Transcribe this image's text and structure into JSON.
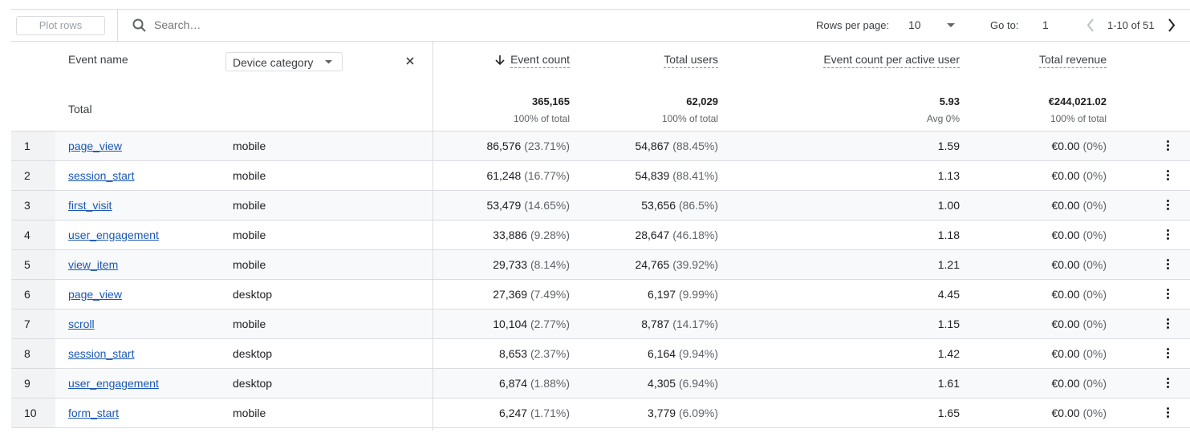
{
  "toolbar": {
    "plot_rows": "Plot rows",
    "search_placeholder": "Search…",
    "rows_per_page_label": "Rows per page:",
    "rows_per_page": "10",
    "goto_label": "Go to:",
    "goto_value": "1",
    "range": "1-10 of 51"
  },
  "headers": {
    "event_name": "Event name",
    "device_category": "Device category",
    "event_count": "Event count",
    "total_users": "Total users",
    "per_user": "Event count per active user",
    "revenue": "Total revenue"
  },
  "totals": {
    "label": "Total",
    "event_count": "365,165",
    "event_count_sub": "100% of total",
    "total_users": "62,029",
    "total_users_sub": "100% of total",
    "per_user": "5.93",
    "per_user_sub": "Avg 0%",
    "revenue": "€244,021.02",
    "revenue_sub": "100% of total"
  },
  "rows": [
    {
      "i": "1",
      "name": "page_view",
      "device": "mobile",
      "ec": "86,576",
      "ecp": "(23.71%)",
      "tu": "54,867",
      "tup": "(88.45%)",
      "pu": "1.59",
      "rev": "€0.00",
      "revp": "(0%)"
    },
    {
      "i": "2",
      "name": "session_start",
      "device": "mobile",
      "ec": "61,248",
      "ecp": "(16.77%)",
      "tu": "54,839",
      "tup": "(88.41%)",
      "pu": "1.13",
      "rev": "€0.00",
      "revp": "(0%)"
    },
    {
      "i": "3",
      "name": "first_visit",
      "device": "mobile",
      "ec": "53,479",
      "ecp": "(14.65%)",
      "tu": "53,656",
      "tup": "(86.5%)",
      "pu": "1.00",
      "rev": "€0.00",
      "revp": "(0%)"
    },
    {
      "i": "4",
      "name": "user_engagement",
      "device": "mobile",
      "ec": "33,886",
      "ecp": "(9.28%)",
      "tu": "28,647",
      "tup": "(46.18%)",
      "pu": "1.18",
      "rev": "€0.00",
      "revp": "(0%)"
    },
    {
      "i": "5",
      "name": "view_item",
      "device": "mobile",
      "ec": "29,733",
      "ecp": "(8.14%)",
      "tu": "24,765",
      "tup": "(39.92%)",
      "pu": "1.21",
      "rev": "€0.00",
      "revp": "(0%)"
    },
    {
      "i": "6",
      "name": "page_view",
      "device": "desktop",
      "ec": "27,369",
      "ecp": "(7.49%)",
      "tu": "6,197",
      "tup": "(9.99%)",
      "pu": "4.45",
      "rev": "€0.00",
      "revp": "(0%)"
    },
    {
      "i": "7",
      "name": "scroll",
      "device": "mobile",
      "ec": "10,104",
      "ecp": "(2.77%)",
      "tu": "8,787",
      "tup": "(14.17%)",
      "pu": "1.15",
      "rev": "€0.00",
      "revp": "(0%)"
    },
    {
      "i": "8",
      "name": "session_start",
      "device": "desktop",
      "ec": "8,653",
      "ecp": "(2.37%)",
      "tu": "6,164",
      "tup": "(9.94%)",
      "pu": "1.42",
      "rev": "€0.00",
      "revp": "(0%)"
    },
    {
      "i": "9",
      "name": "user_engagement",
      "device": "desktop",
      "ec": "6,874",
      "ecp": "(1.88%)",
      "tu": "4,305",
      "tup": "(6.94%)",
      "pu": "1.61",
      "rev": "€0.00",
      "revp": "(0%)"
    },
    {
      "i": "10",
      "name": "form_start",
      "device": "mobile",
      "ec": "6,247",
      "ecp": "(1.71%)",
      "tu": "3,779",
      "tup": "(6.09%)",
      "pu": "1.65",
      "rev": "€0.00",
      "revp": "(0%)"
    }
  ]
}
